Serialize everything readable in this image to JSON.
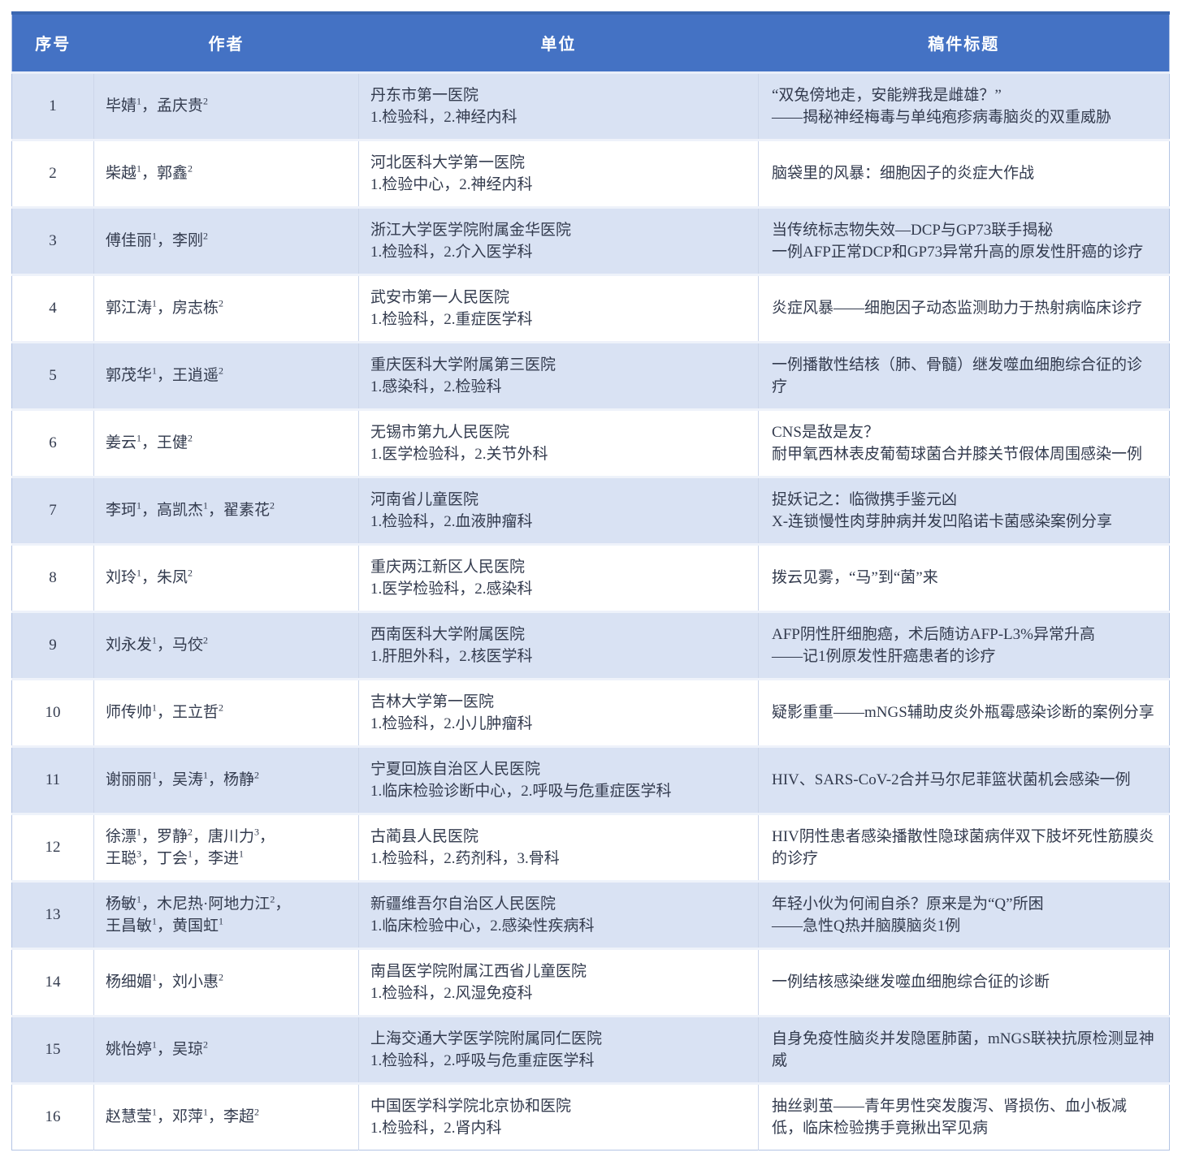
{
  "colors": {
    "header_bg": "#4472C4",
    "header_top_edge": "#3A67B1",
    "header_text": "#FFFFFF",
    "row_band_bg": "#D9E2F3",
    "row_bg": "#FFFFFF",
    "body_text": "#333B4E",
    "grid_line": "#CCD6EA"
  },
  "table": {
    "columns": [
      "序号",
      "作者",
      "单位",
      "稿件标题"
    ],
    "rows": [
      {
        "no": "1",
        "authors": [
          "毕婧^1，孟庆贵^2"
        ],
        "unit": [
          "丹东市第一医院",
          "1.检验科，2.神经内科"
        ],
        "title": [
          "“双兔傍地走，安能辨我是雌雄？”",
          "——揭秘神经梅毒与单纯疱疹病毒脑炎的双重威胁"
        ]
      },
      {
        "no": "2",
        "authors": [
          "柴越^1，郭鑫^2"
        ],
        "unit": [
          "河北医科大学第一医院",
          "1.检验中心，2.神经内科"
        ],
        "title": [
          "脑袋里的风暴：细胞因子的炎症大作战"
        ]
      },
      {
        "no": "3",
        "authors": [
          "傅佳丽^1，李刚^2"
        ],
        "unit": [
          "浙江大学医学院附属金华医院",
          "1.检验科，2.介入医学科"
        ],
        "title": [
          "当传统标志物失效—DCP与GP73联手揭秘",
          "一例AFP正常DCP和GP73异常升高的原发性肝癌的诊疗"
        ]
      },
      {
        "no": "4",
        "authors": [
          "郭江涛^1，房志栋^2"
        ],
        "unit": [
          "武安市第一人民医院",
          "1.检验科，2.重症医学科"
        ],
        "title": [
          "炎症风暴——细胞因子动态监测助力于热射病临床诊疗"
        ]
      },
      {
        "no": "5",
        "authors": [
          "郭茂华^1，王逍遥^2"
        ],
        "unit": [
          "重庆医科大学附属第三医院",
          "1.感染科，2.检验科"
        ],
        "title": [
          "一例播散性结核（肺、骨髓）继发噬血细胞综合征的诊疗"
        ]
      },
      {
        "no": "6",
        "authors": [
          "姜云^1，王健^2"
        ],
        "unit": [
          "无锡市第九人民医院",
          "1.医学检验科，2.关节外科"
        ],
        "title": [
          "CNS是敌是友？",
          "耐甲氧西林表皮葡萄球菌合并膝关节假体周围感染一例"
        ]
      },
      {
        "no": "7",
        "authors": [
          "李珂^1，高凯杰^1，翟素花^2"
        ],
        "unit": [
          "河南省儿童医院",
          "1.检验科，2.血液肿瘤科"
        ],
        "title": [
          "捉妖记之：临微携手鉴元凶",
          "X-连锁慢性肉芽肿病并发凹陷诺卡菌感染案例分享"
        ]
      },
      {
        "no": "8",
        "authors": [
          "刘玲^1，朱凤^2"
        ],
        "unit": [
          "重庆两江新区人民医院",
          "1.医学检验科，2.感染科"
        ],
        "title": [
          "拨云见雾，“马”到“菌”来"
        ]
      },
      {
        "no": "9",
        "authors": [
          "刘永发^1，马佼^2"
        ],
        "unit": [
          "西南医科大学附属医院",
          "1.肝胆外科，2.核医学科"
        ],
        "title": [
          "AFP阴性肝细胞癌，术后随访AFP-L3%异常升高",
          "——记1例原发性肝癌患者的诊疗"
        ]
      },
      {
        "no": "10",
        "authors": [
          "师传帅^1，王立哲^2"
        ],
        "unit": [
          "吉林大学第一医院",
          "1.检验科，2.小儿肿瘤科"
        ],
        "title": [
          "疑影重重——mNGS辅助皮炎外瓶霉感染诊断的案例分享"
        ]
      },
      {
        "no": "11",
        "authors": [
          "谢丽丽^1，吴涛^1，杨静^2"
        ],
        "unit": [
          "宁夏回族自治区人民医院",
          "1.临床检验诊断中心，2.呼吸与危重症医学科"
        ],
        "title": [
          "HIV、SARS-CoV-2合并马尔尼菲篮状菌机会感染一例"
        ]
      },
      {
        "no": "12",
        "authors": [
          "徐漂^1，罗静^2，唐川力^3，",
          "王聪^3，丁会^1，李进^1"
        ],
        "unit": [
          "古蔺县人民医院",
          "1.检验科，2.药剂科，3.骨科"
        ],
        "title": [
          "HIV阴性患者感染播散性隐球菌病伴双下肢坏死性筋膜炎的诊疗"
        ]
      },
      {
        "no": "13",
        "authors": [
          "杨敏^1，木尼热·阿地力江^2，",
          "王昌敏^1，黄国虹^1"
        ],
        "unit": [
          "新疆维吾尔自治区人民医院",
          "1.临床检验中心，2.感染性疾病科"
        ],
        "title": [
          "年轻小伙为何闹自杀？原来是为“Q”所困",
          "——急性Q热并脑膜脑炎1例"
        ]
      },
      {
        "no": "14",
        "authors": [
          "杨细媚^1，刘小惠^2"
        ],
        "unit": [
          "南昌医学院附属江西省儿童医院",
          "1.检验科，2.风湿免疫科"
        ],
        "title": [
          "一例结核感染继发噬血细胞综合征的诊断"
        ]
      },
      {
        "no": "15",
        "authors": [
          "姚怡婷^1，吴琼^2"
        ],
        "unit": [
          "上海交通大学医学院附属同仁医院",
          "1.检验科，2.呼吸与危重症医学科"
        ],
        "title": [
          "自身免疫性脑炎并发隐匿肺菌，mNGS联袂抗原检测显神威"
        ]
      },
      {
        "no": "16",
        "authors": [
          "赵慧莹^1，邓萍^1，李超^2"
        ],
        "unit": [
          "中国医学科学院北京协和医院",
          "1.检验科，2.肾内科"
        ],
        "title": [
          "抽丝剥茧——青年男性突发腹泻、肾损伤、血小板减低，临床检验携手竟揪出罕见病"
        ]
      }
    ]
  }
}
